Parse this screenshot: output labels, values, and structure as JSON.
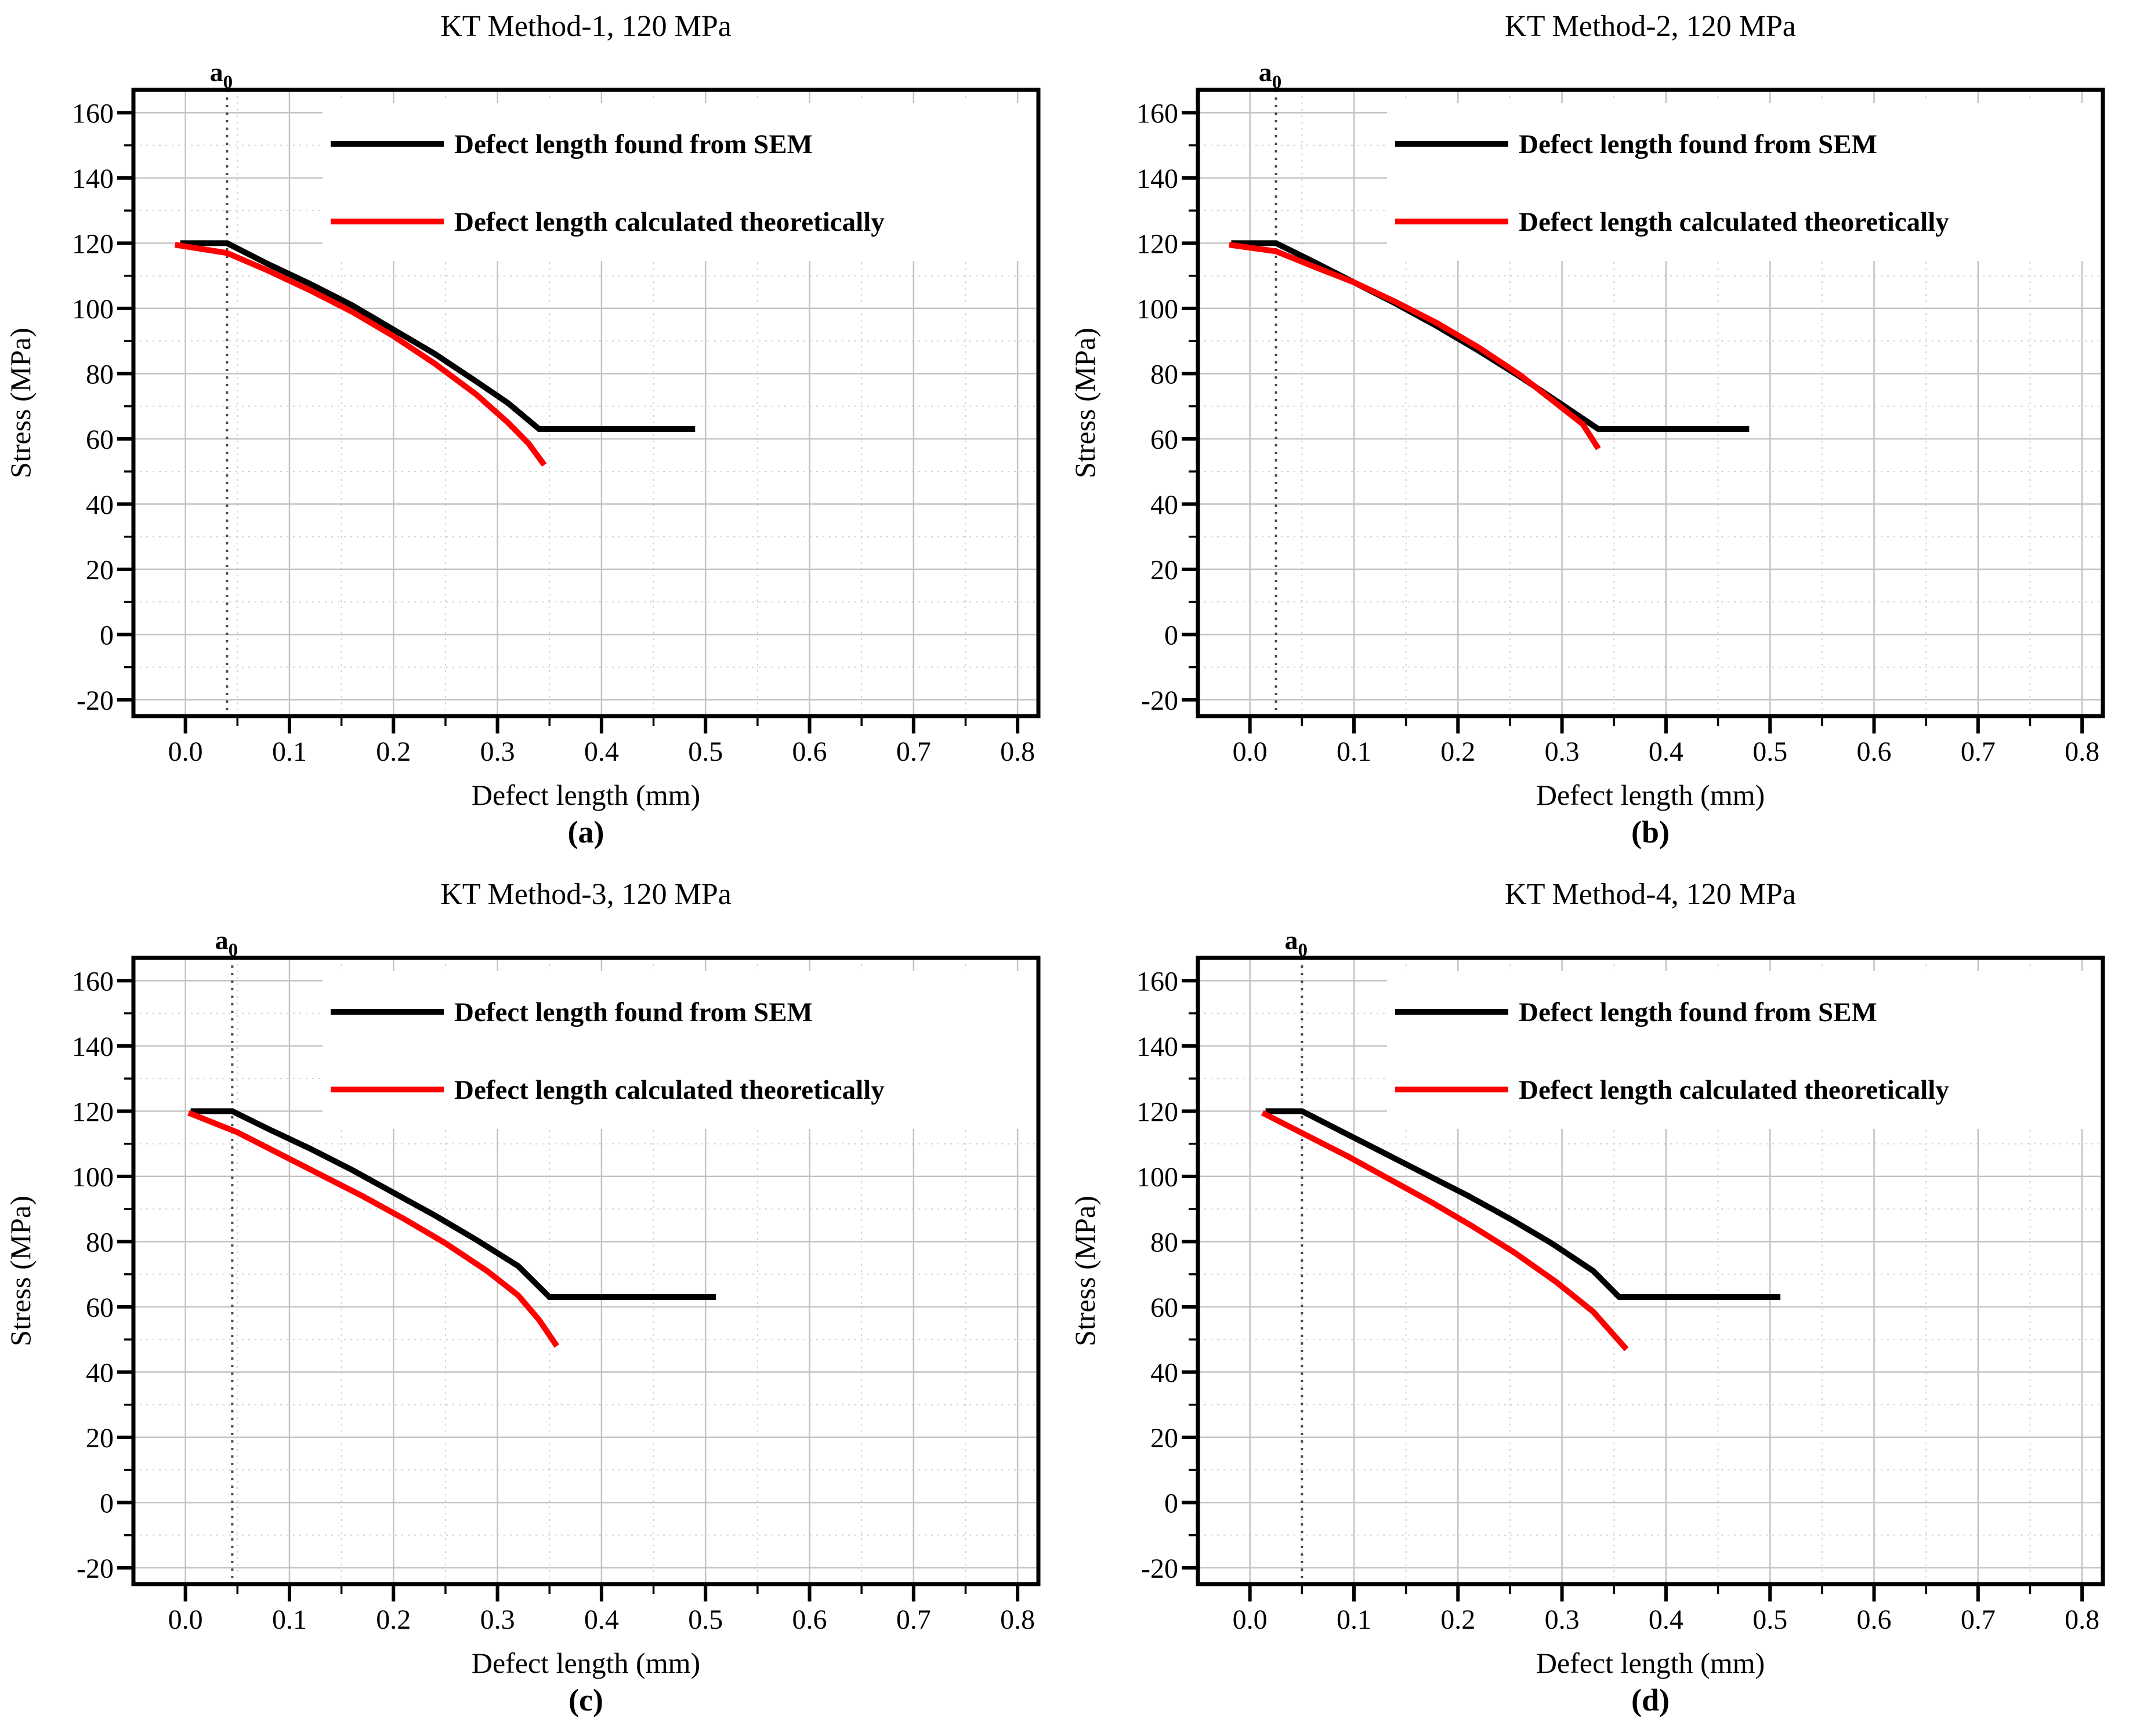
{
  "page": {
    "background": "#ffffff"
  },
  "colors": {
    "sem_line": "#000000",
    "theory_line": "#ff0000",
    "grid_major": "#c3c3c3",
    "grid_minor": "#d2d2d2",
    "a0_line": "#4a4a4a",
    "frame": "#000000"
  },
  "legend": {
    "items": [
      {
        "label": "Defect length found from SEM",
        "color": "#000000"
      },
      {
        "label": "Defect length calculated theoretically",
        "color": "#ff0000"
      }
    ],
    "position": "top-right-inside"
  },
  "axes": {
    "xlabel": "Defect length (mm)",
    "ylabel": "Stress (MPa)",
    "xlim": [
      -0.05,
      0.82
    ],
    "ylim": [
      -25,
      167
    ],
    "x_major_values": [
      0,
      0.1,
      0.2,
      0.3,
      0.4,
      0.5,
      0.6,
      0.7,
      0.8
    ],
    "x_major_labels": [
      "0.0",
      "0.1",
      "0.2",
      "0.3",
      "0.4",
      "0.5",
      "0.6",
      "0.7",
      "0.8"
    ],
    "x_minor_values": [
      0.05,
      0.15,
      0.25,
      0.35,
      0.45,
      0.55,
      0.65,
      0.75
    ],
    "y_major_values": [
      -20,
      0,
      20,
      40,
      60,
      80,
      100,
      120,
      140,
      160
    ],
    "y_major_labels": [
      "-20",
      "0",
      "20",
      "40",
      "60",
      "80",
      "100",
      "120",
      "140",
      "160"
    ],
    "y_minor_values": [
      -10,
      10,
      30,
      50,
      70,
      90,
      110,
      130,
      150
    ],
    "grid": "on",
    "a0_marker": {
      "base": "a",
      "sub": "0"
    }
  },
  "chart_data": [
    {
      "type": "line",
      "title": "KT Method-1, 120 MPa",
      "caption": "a",
      "caption_display": "(a)",
      "xlabel": "Defect length (mm)",
      "ylabel": "Stress (MPa)",
      "xlim": [
        -0.05,
        0.82
      ],
      "ylim": [
        -25,
        167
      ],
      "a0_x": 0.04,
      "series": [
        {
          "name": "Defect length found from SEM",
          "color": "#000000",
          "points": [
            [
              -0.005,
              120
            ],
            [
              0.04,
              120
            ],
            [
              0.08,
              113.5
            ],
            [
              0.12,
              107.5
            ],
            [
              0.16,
              101
            ],
            [
              0.2,
              93.5
            ],
            [
              0.24,
              86
            ],
            [
              0.28,
              77.5
            ],
            [
              0.31,
              71
            ],
            [
              0.34,
              63
            ],
            [
              0.49,
              63
            ]
          ]
        },
        {
          "name": "Defect length calculated theoretically",
          "color": "#ff0000",
          "points": [
            [
              -0.01,
              119.5
            ],
            [
              0.04,
              117
            ],
            [
              0.08,
              111.5
            ],
            [
              0.12,
              105.5
            ],
            [
              0.16,
              99
            ],
            [
              0.2,
              91.5
            ],
            [
              0.24,
              83
            ],
            [
              0.28,
              73.5
            ],
            [
              0.31,
              65
            ],
            [
              0.33,
              58.5
            ],
            [
              0.345,
              52
            ]
          ]
        }
      ]
    },
    {
      "type": "line",
      "title": "KT Method-2, 120 MPa",
      "caption": "b",
      "caption_display": "(b)",
      "xlabel": "Defect length (mm)",
      "ylabel": "Stress (MPa)",
      "xlim": [
        -0.05,
        0.82
      ],
      "ylim": [
        -25,
        167
      ],
      "a0_x": 0.025,
      "series": [
        {
          "name": "Defect length found from SEM",
          "color": "#000000",
          "points": [
            [
              -0.018,
              120
            ],
            [
              0.025,
              120
            ],
            [
              0.06,
              114.5
            ],
            [
              0.1,
              108
            ],
            [
              0.14,
              101.5
            ],
            [
              0.18,
              94.5
            ],
            [
              0.22,
              87
            ],
            [
              0.26,
              79
            ],
            [
              0.3,
              70.5
            ],
            [
              0.335,
              63
            ],
            [
              0.48,
              63
            ]
          ]
        },
        {
          "name": "Defect length calculated theoretically",
          "color": "#ff0000",
          "points": [
            [
              -0.02,
              119.5
            ],
            [
              0.025,
              117.5
            ],
            [
              0.06,
              113
            ],
            [
              0.1,
              108
            ],
            [
              0.14,
              102
            ],
            [
              0.18,
              95.5
            ],
            [
              0.22,
              88
            ],
            [
              0.26,
              79.5
            ],
            [
              0.3,
              69.5
            ],
            [
              0.32,
              64.5
            ],
            [
              0.335,
              57
            ]
          ]
        }
      ]
    },
    {
      "type": "line",
      "title": "KT Method-3, 120 MPa",
      "caption": "c",
      "caption_display": "(c)",
      "xlabel": "Defect length (mm)",
      "ylabel": "Stress (MPa)",
      "xlim": [
        -0.05,
        0.82
      ],
      "ylim": [
        -25,
        167
      ],
      "a0_x": 0.045,
      "series": [
        {
          "name": "Defect length found from SEM",
          "color": "#000000",
          "points": [
            [
              0.005,
              120
            ],
            [
              0.045,
              120
            ],
            [
              0.08,
              114.5
            ],
            [
              0.12,
              108.5
            ],
            [
              0.16,
              102
            ],
            [
              0.2,
              95
            ],
            [
              0.24,
              88
            ],
            [
              0.28,
              80.5
            ],
            [
              0.32,
              72.5
            ],
            [
              0.35,
              63
            ],
            [
              0.51,
              63
            ]
          ]
        },
        {
          "name": "Defect length calculated theoretically",
          "color": "#ff0000",
          "points": [
            [
              0.003,
              119.5
            ],
            [
              0.05,
              113.5
            ],
            [
              0.09,
              107
            ],
            [
              0.13,
              100.5
            ],
            [
              0.17,
              94
            ],
            [
              0.21,
              87
            ],
            [
              0.25,
              79.5
            ],
            [
              0.29,
              71
            ],
            [
              0.32,
              63.5
            ],
            [
              0.34,
              56
            ],
            [
              0.357,
              48
            ]
          ]
        }
      ]
    },
    {
      "type": "line",
      "title": "KT Method-4, 120 MPa",
      "caption": "d",
      "caption_display": "(d)",
      "xlabel": "Defect length (mm)",
      "ylabel": "Stress (MPa)",
      "xlim": [
        -0.05,
        0.82
      ],
      "ylim": [
        -25,
        167
      ],
      "a0_x": 0.05,
      "series": [
        {
          "name": "Defect length found from SEM",
          "color": "#000000",
          "points": [
            [
              0.015,
              120
            ],
            [
              0.05,
              120
            ],
            [
              0.09,
              113.5
            ],
            [
              0.13,
              107
            ],
            [
              0.17,
              100.5
            ],
            [
              0.21,
              94
            ],
            [
              0.25,
              87
            ],
            [
              0.29,
              79.5
            ],
            [
              0.33,
              71
            ],
            [
              0.355,
              63
            ],
            [
              0.51,
              63
            ]
          ]
        },
        {
          "name": "Defect length calculated theoretically",
          "color": "#ff0000",
          "points": [
            [
              0.012,
              119.5
            ],
            [
              0.055,
              112.5
            ],
            [
              0.095,
              106
            ],
            [
              0.135,
              99
            ],
            [
              0.175,
              92
            ],
            [
              0.215,
              84.5
            ],
            [
              0.255,
              76.5
            ],
            [
              0.295,
              67.5
            ],
            [
              0.33,
              58.5
            ],
            [
              0.362,
              47
            ]
          ]
        }
      ]
    }
  ]
}
